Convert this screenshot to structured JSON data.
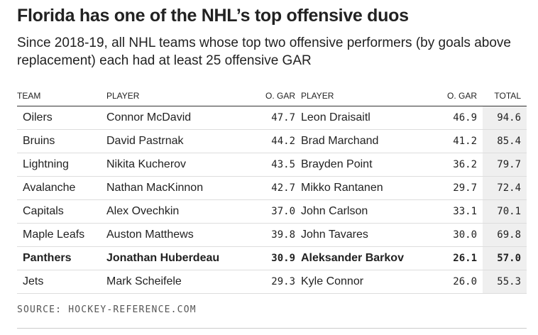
{
  "chart_data": {
    "type": "table",
    "title": "Florida has one of the NHL’s top offensive duos",
    "subtitle": "Since 2018-19, all NHL teams whose top two offensive performers (by goals above replacement) each had at least 25 offensive GAR",
    "columns": [
      "TEAM",
      "PLAYER",
      "O. GAR",
      "PLAYER",
      "O. GAR",
      "TOTAL"
    ],
    "rows": [
      {
        "team": "Oilers",
        "player1": "Connor McDavid",
        "gar1": "47.7",
        "player2": "Leon Draisaitl",
        "gar2": "46.9",
        "total": "94.6",
        "highlight": false
      },
      {
        "team": "Bruins",
        "player1": "David Pastrnak",
        "gar1": "44.2",
        "player2": "Brad Marchand",
        "gar2": "41.2",
        "total": "85.4",
        "highlight": false
      },
      {
        "team": "Lightning",
        "player1": "Nikita Kucherov",
        "gar1": "43.5",
        "player2": "Brayden Point",
        "gar2": "36.2",
        "total": "79.7",
        "highlight": false
      },
      {
        "team": "Avalanche",
        "player1": "Nathan MacKinnon",
        "gar1": "42.7",
        "player2": "Mikko Rantanen",
        "gar2": "29.7",
        "total": "72.4",
        "highlight": false
      },
      {
        "team": "Capitals",
        "player1": "Alex Ovechkin",
        "gar1": "37.0",
        "player2": "John Carlson",
        "gar2": "33.1",
        "total": "70.1",
        "highlight": false
      },
      {
        "team": "Maple Leafs",
        "player1": "Auston Matthews",
        "gar1": "39.8",
        "player2": "John Tavares",
        "gar2": "30.0",
        "total": "69.8",
        "highlight": false
      },
      {
        "team": "Panthers",
        "player1": "Jonathan Huberdeau",
        "gar1": "30.9",
        "player2": "Aleksander Barkov",
        "gar2": "26.1",
        "total": "57.0",
        "highlight": true
      },
      {
        "team": "Jets",
        "player1": "Mark Scheifele",
        "gar1": "29.3",
        "player2": "Kyle Connor",
        "gar2": "26.0",
        "total": "55.3",
        "highlight": false
      }
    ],
    "source": "SOURCE: HOCKEY-REFERENCE.COM",
    "colors": {
      "text": "#222222",
      "total_bg": "#efefef",
      "row_rule": "#dddddd",
      "header_rule": "#333333"
    }
  }
}
